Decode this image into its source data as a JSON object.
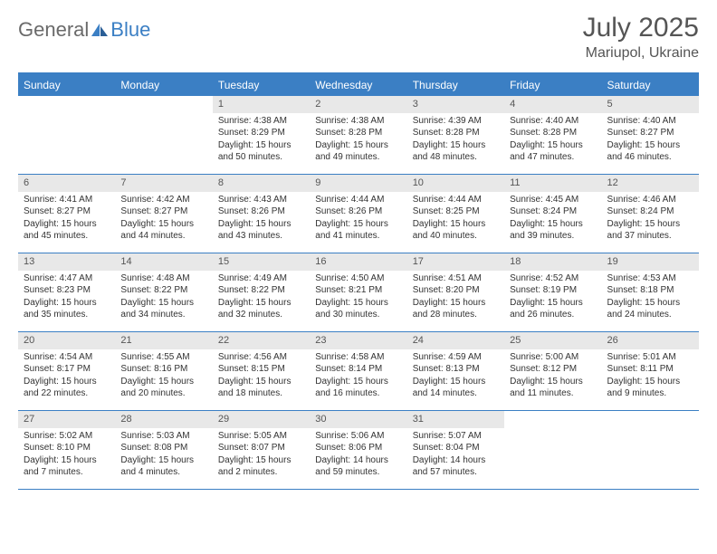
{
  "brand": {
    "part1": "General",
    "part2": "Blue"
  },
  "title": "July 2025",
  "location": "Mariupol, Ukraine",
  "colors": {
    "accent": "#3b7fc4",
    "header_bg": "#3b7fc4",
    "daynum_bg": "#e8e8e8",
    "text": "#333333",
    "muted": "#555555",
    "logo_gray": "#6a6a6a"
  },
  "weekdays": [
    "Sunday",
    "Monday",
    "Tuesday",
    "Wednesday",
    "Thursday",
    "Friday",
    "Saturday"
  ],
  "weeks": [
    [
      null,
      null,
      {
        "n": "1",
        "sr": "Sunrise: 4:38 AM",
        "ss": "Sunset: 8:29 PM",
        "dl": "Daylight: 15 hours and 50 minutes."
      },
      {
        "n": "2",
        "sr": "Sunrise: 4:38 AM",
        "ss": "Sunset: 8:28 PM",
        "dl": "Daylight: 15 hours and 49 minutes."
      },
      {
        "n": "3",
        "sr": "Sunrise: 4:39 AM",
        "ss": "Sunset: 8:28 PM",
        "dl": "Daylight: 15 hours and 48 minutes."
      },
      {
        "n": "4",
        "sr": "Sunrise: 4:40 AM",
        "ss": "Sunset: 8:28 PM",
        "dl": "Daylight: 15 hours and 47 minutes."
      },
      {
        "n": "5",
        "sr": "Sunrise: 4:40 AM",
        "ss": "Sunset: 8:27 PM",
        "dl": "Daylight: 15 hours and 46 minutes."
      }
    ],
    [
      {
        "n": "6",
        "sr": "Sunrise: 4:41 AM",
        "ss": "Sunset: 8:27 PM",
        "dl": "Daylight: 15 hours and 45 minutes."
      },
      {
        "n": "7",
        "sr": "Sunrise: 4:42 AM",
        "ss": "Sunset: 8:27 PM",
        "dl": "Daylight: 15 hours and 44 minutes."
      },
      {
        "n": "8",
        "sr": "Sunrise: 4:43 AM",
        "ss": "Sunset: 8:26 PM",
        "dl": "Daylight: 15 hours and 43 minutes."
      },
      {
        "n": "9",
        "sr": "Sunrise: 4:44 AM",
        "ss": "Sunset: 8:26 PM",
        "dl": "Daylight: 15 hours and 41 minutes."
      },
      {
        "n": "10",
        "sr": "Sunrise: 4:44 AM",
        "ss": "Sunset: 8:25 PM",
        "dl": "Daylight: 15 hours and 40 minutes."
      },
      {
        "n": "11",
        "sr": "Sunrise: 4:45 AM",
        "ss": "Sunset: 8:24 PM",
        "dl": "Daylight: 15 hours and 39 minutes."
      },
      {
        "n": "12",
        "sr": "Sunrise: 4:46 AM",
        "ss": "Sunset: 8:24 PM",
        "dl": "Daylight: 15 hours and 37 minutes."
      }
    ],
    [
      {
        "n": "13",
        "sr": "Sunrise: 4:47 AM",
        "ss": "Sunset: 8:23 PM",
        "dl": "Daylight: 15 hours and 35 minutes."
      },
      {
        "n": "14",
        "sr": "Sunrise: 4:48 AM",
        "ss": "Sunset: 8:22 PM",
        "dl": "Daylight: 15 hours and 34 minutes."
      },
      {
        "n": "15",
        "sr": "Sunrise: 4:49 AM",
        "ss": "Sunset: 8:22 PM",
        "dl": "Daylight: 15 hours and 32 minutes."
      },
      {
        "n": "16",
        "sr": "Sunrise: 4:50 AM",
        "ss": "Sunset: 8:21 PM",
        "dl": "Daylight: 15 hours and 30 minutes."
      },
      {
        "n": "17",
        "sr": "Sunrise: 4:51 AM",
        "ss": "Sunset: 8:20 PM",
        "dl": "Daylight: 15 hours and 28 minutes."
      },
      {
        "n": "18",
        "sr": "Sunrise: 4:52 AM",
        "ss": "Sunset: 8:19 PM",
        "dl": "Daylight: 15 hours and 26 minutes."
      },
      {
        "n": "19",
        "sr": "Sunrise: 4:53 AM",
        "ss": "Sunset: 8:18 PM",
        "dl": "Daylight: 15 hours and 24 minutes."
      }
    ],
    [
      {
        "n": "20",
        "sr": "Sunrise: 4:54 AM",
        "ss": "Sunset: 8:17 PM",
        "dl": "Daylight: 15 hours and 22 minutes."
      },
      {
        "n": "21",
        "sr": "Sunrise: 4:55 AM",
        "ss": "Sunset: 8:16 PM",
        "dl": "Daylight: 15 hours and 20 minutes."
      },
      {
        "n": "22",
        "sr": "Sunrise: 4:56 AM",
        "ss": "Sunset: 8:15 PM",
        "dl": "Daylight: 15 hours and 18 minutes."
      },
      {
        "n": "23",
        "sr": "Sunrise: 4:58 AM",
        "ss": "Sunset: 8:14 PM",
        "dl": "Daylight: 15 hours and 16 minutes."
      },
      {
        "n": "24",
        "sr": "Sunrise: 4:59 AM",
        "ss": "Sunset: 8:13 PM",
        "dl": "Daylight: 15 hours and 14 minutes."
      },
      {
        "n": "25",
        "sr": "Sunrise: 5:00 AM",
        "ss": "Sunset: 8:12 PM",
        "dl": "Daylight: 15 hours and 11 minutes."
      },
      {
        "n": "26",
        "sr": "Sunrise: 5:01 AM",
        "ss": "Sunset: 8:11 PM",
        "dl": "Daylight: 15 hours and 9 minutes."
      }
    ],
    [
      {
        "n": "27",
        "sr": "Sunrise: 5:02 AM",
        "ss": "Sunset: 8:10 PM",
        "dl": "Daylight: 15 hours and 7 minutes."
      },
      {
        "n": "28",
        "sr": "Sunrise: 5:03 AM",
        "ss": "Sunset: 8:08 PM",
        "dl": "Daylight: 15 hours and 4 minutes."
      },
      {
        "n": "29",
        "sr": "Sunrise: 5:05 AM",
        "ss": "Sunset: 8:07 PM",
        "dl": "Daylight: 15 hours and 2 minutes."
      },
      {
        "n": "30",
        "sr": "Sunrise: 5:06 AM",
        "ss": "Sunset: 8:06 PM",
        "dl": "Daylight: 14 hours and 59 minutes."
      },
      {
        "n": "31",
        "sr": "Sunrise: 5:07 AM",
        "ss": "Sunset: 8:04 PM",
        "dl": "Daylight: 14 hours and 57 minutes."
      },
      null,
      null
    ]
  ]
}
